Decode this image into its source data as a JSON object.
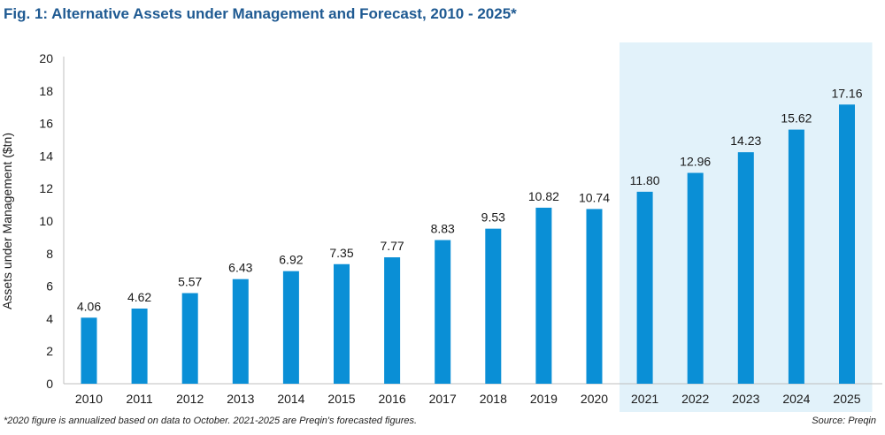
{
  "title": "Fig. 1: Alternative Assets under Management and Forecast, 2010 - 2025*",
  "footnote": "*2020 figure is annualized based on data to October. 2021-2025 are Preqin's forecasted figures.",
  "source": "Source: Preqin",
  "colors": {
    "bar": "#0a8fd6",
    "forecast_shade": "#e2f2fa",
    "title": "#1f5a92"
  },
  "chart_data": {
    "type": "bar",
    "title": "Fig. 1: Alternative Assets under Management and Forecast, 2010 - 2025*",
    "xlabel": "",
    "ylabel": "Assets under Management ($tn)",
    "ylim": [
      0,
      20
    ],
    "yticks": [
      "0",
      "2",
      "4",
      "6",
      "8",
      "10",
      "12",
      "14",
      "16",
      "18",
      "20"
    ],
    "categories": [
      "2010",
      "2011",
      "2012",
      "2013",
      "2014",
      "2015",
      "2016",
      "2017",
      "2018",
      "2019",
      "2020",
      "2021",
      "2022",
      "2023",
      "2024",
      "2025"
    ],
    "values": [
      4.06,
      4.62,
      5.57,
      6.43,
      6.92,
      7.35,
      7.77,
      8.83,
      9.53,
      10.82,
      10.74,
      11.8,
      12.96,
      14.23,
      15.62,
      17.16
    ],
    "data_labels": [
      "4.06",
      "4.62",
      "5.57",
      "6.43",
      "6.92",
      "7.35",
      "7.77",
      "8.83",
      "9.53",
      "10.82",
      "10.74",
      "11.80",
      "12.96",
      "14.23",
      "15.62",
      "17.16"
    ],
    "forecast_categories": [
      "2021",
      "2022",
      "2023",
      "2024",
      "2025"
    ],
    "grid": false,
    "legend": "none"
  }
}
